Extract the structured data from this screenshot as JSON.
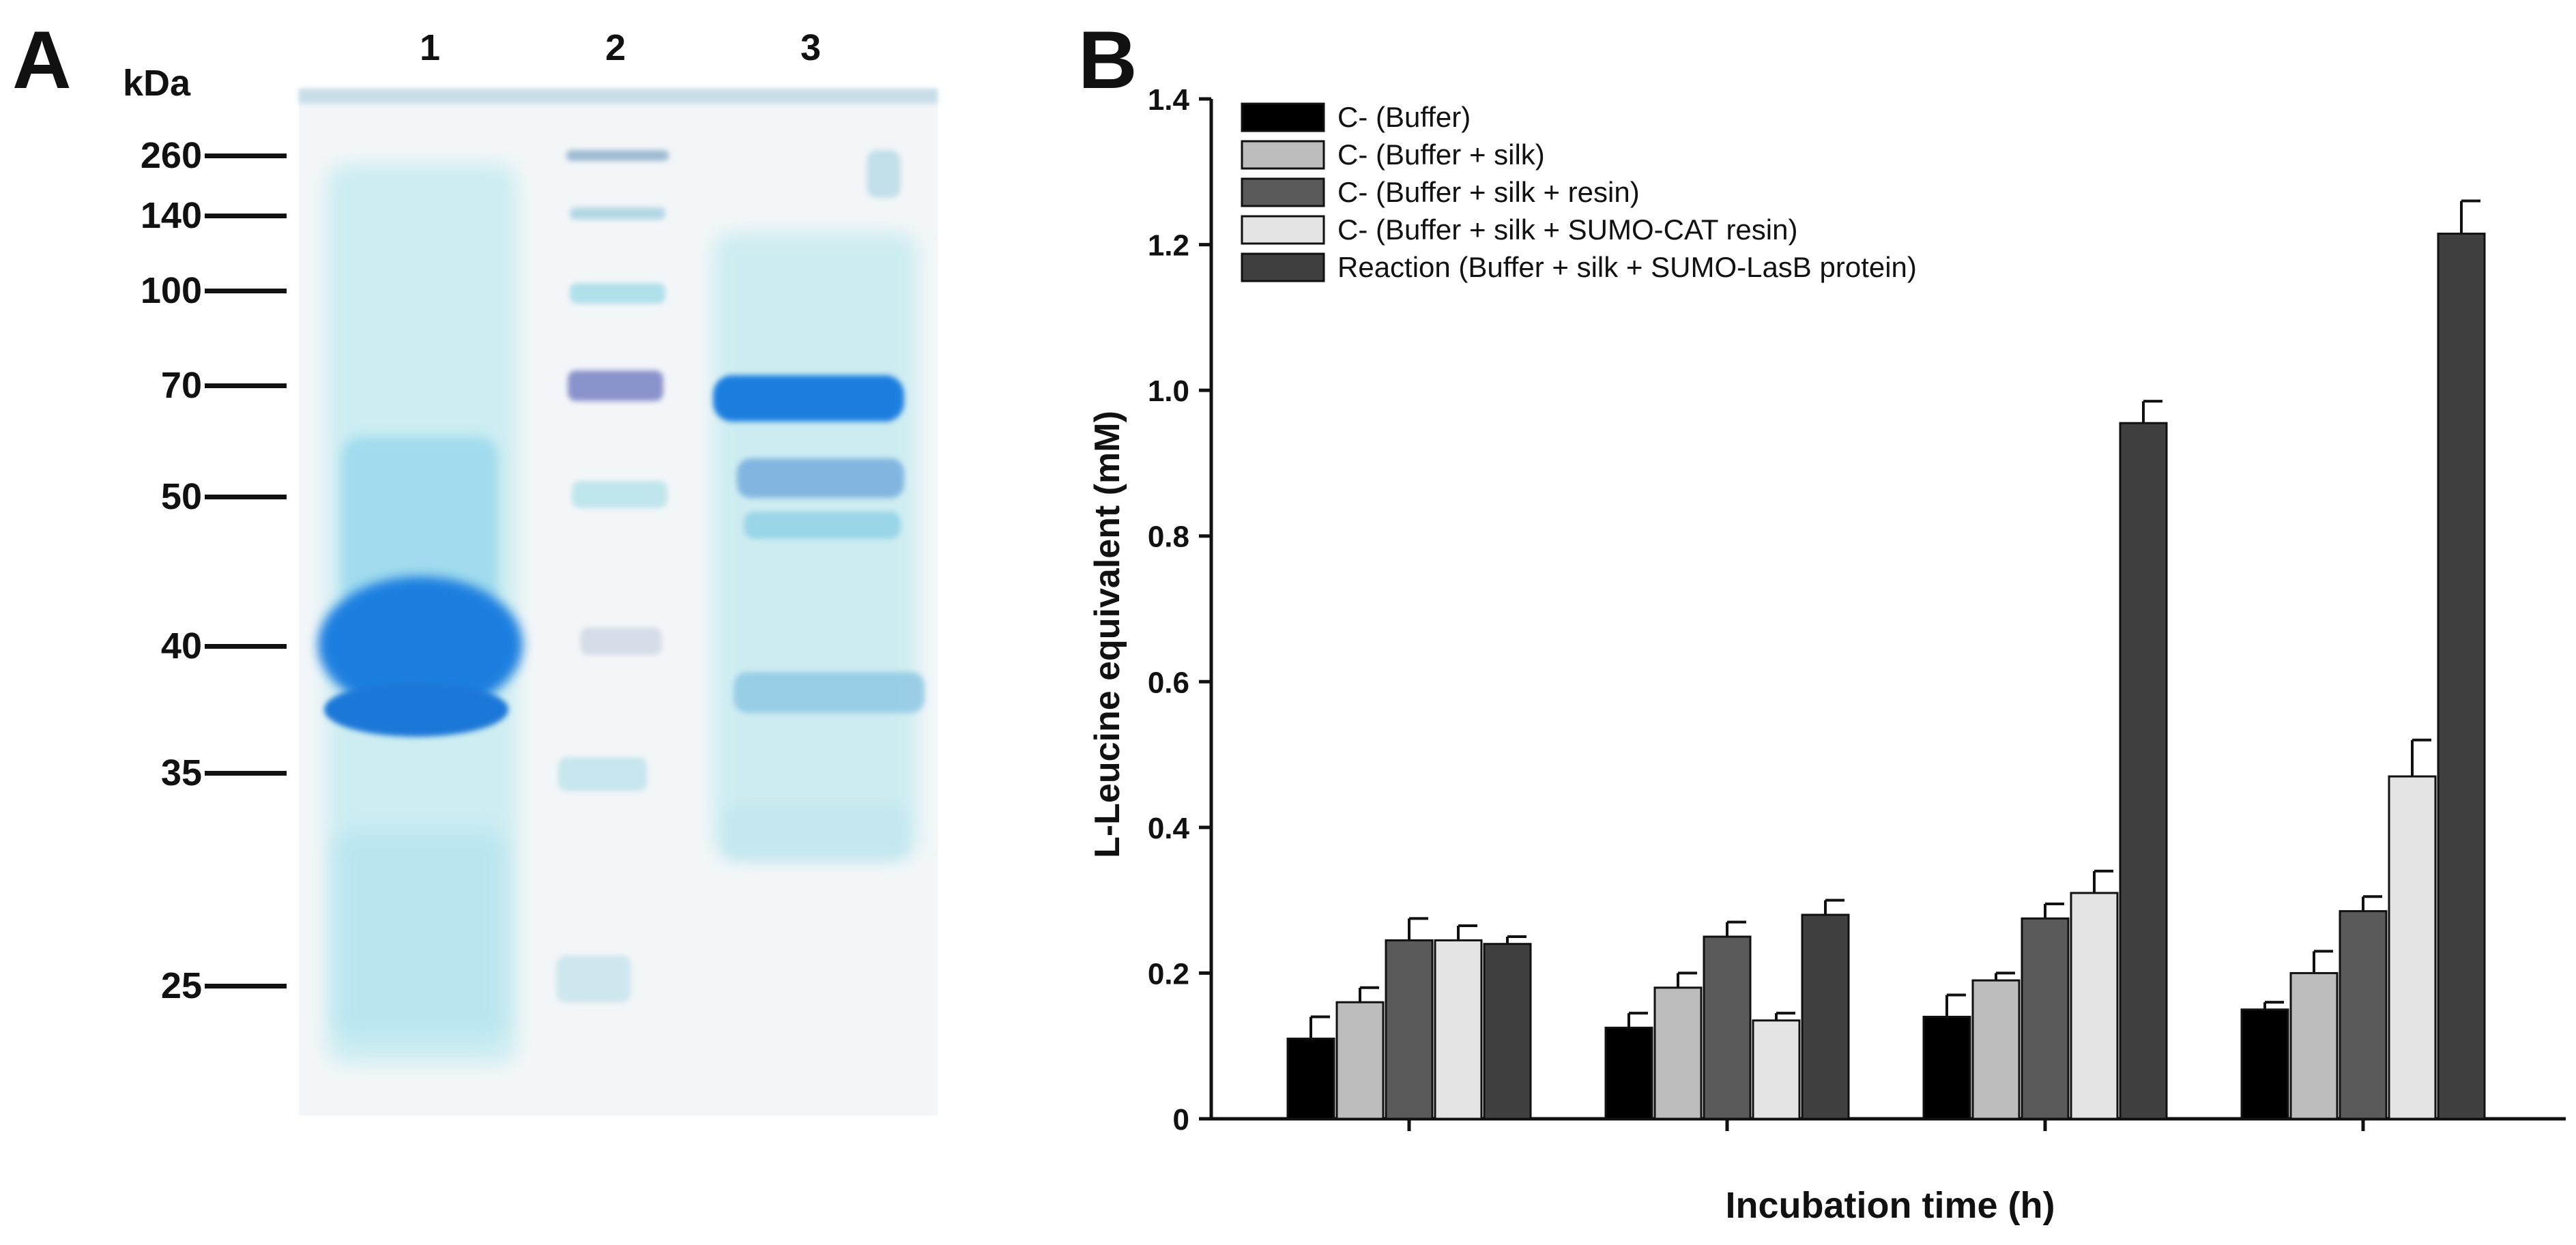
{
  "panel_a": {
    "letter": "A",
    "unit_label": "kDa",
    "lane_labels": [
      "1",
      "2",
      "3"
    ],
    "marker_labels": [
      "260",
      "140",
      "100",
      "70",
      "50",
      "40",
      "35",
      "25"
    ],
    "colors": {
      "stain": "#1f7fe0",
      "background": "#f3f6f8",
      "faint_stain": "#bfe8ef"
    }
  },
  "panel_b": {
    "letter": "B"
  },
  "chart_data": {
    "type": "bar",
    "xlabel": "Incubation time (h)",
    "ylabel": "L-Leucine equivalent (mM)",
    "ylim": [
      0,
      1.4
    ],
    "yticks": [
      "0",
      "0.2",
      "0.4",
      "0.6",
      "0.8",
      "1.0",
      "1.2",
      "1.4"
    ],
    "categories": [
      "",
      "",
      "",
      ""
    ],
    "legend_position": "top-left",
    "grid": false,
    "series": [
      {
        "name": "C- (Buffer)",
        "color": "#000000",
        "values": [
          0.11,
          0.125,
          0.14,
          0.15
        ],
        "errors": [
          0.03,
          0.02,
          0.03,
          0.01
        ]
      },
      {
        "name": "C- (Buffer + silk)",
        "color": "#bdbdbd",
        "values": [
          0.16,
          0.18,
          0.19,
          0.2
        ],
        "errors": [
          0.02,
          0.02,
          0.01,
          0.03
        ]
      },
      {
        "name": "C- (Buffer + silk + resin)",
        "color": "#5a5a5a",
        "values": [
          0.245,
          0.25,
          0.275,
          0.285
        ],
        "errors": [
          0.03,
          0.02,
          0.02,
          0.02
        ]
      },
      {
        "name": "C- (Buffer + silk + SUMO-CAT resin)",
        "color": "#e4e4e4",
        "values": [
          0.245,
          0.135,
          0.31,
          0.47
        ],
        "errors": [
          0.02,
          0.01,
          0.03,
          0.05
        ]
      },
      {
        "name": "Reaction (Buffer + silk + SUMO-LasB protein)",
        "color": "#404040",
        "values": [
          0.24,
          0.28,
          0.955,
          1.215
        ],
        "errors": [
          0.01,
          0.02,
          0.03,
          0.045
        ]
      }
    ]
  }
}
